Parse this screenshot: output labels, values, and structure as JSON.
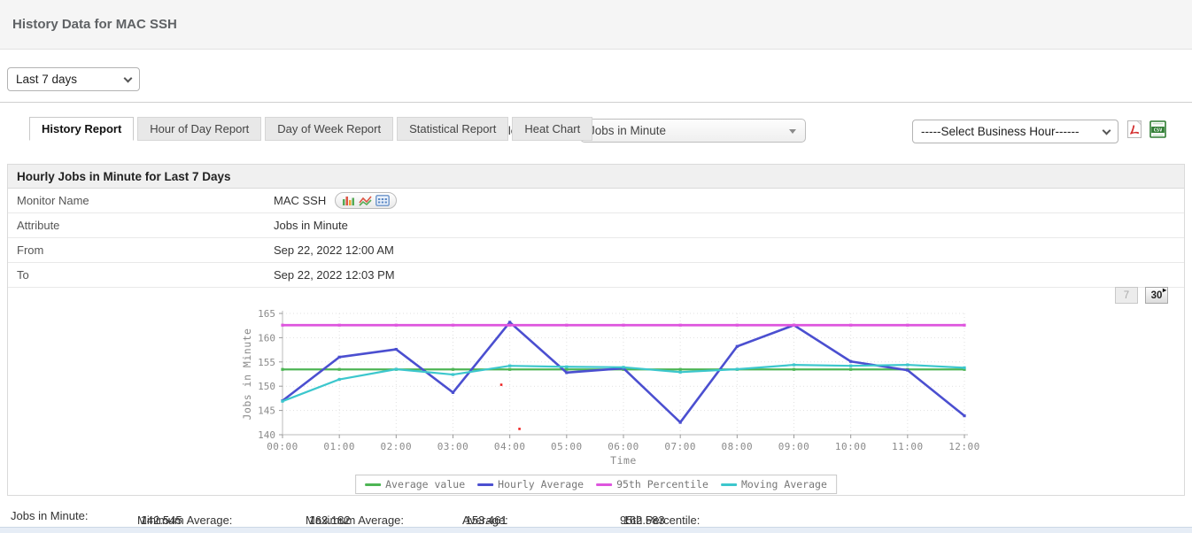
{
  "header": {
    "title": "History Data for MAC SSH"
  },
  "toolbar": {
    "period_select": {
      "value": "Last 7 days"
    },
    "attribute_label": "Select Attribute:",
    "attribute_select": {
      "value": "Jobs in Minute"
    },
    "business_hour_select": {
      "value": "-----Select Business Hour------"
    },
    "export": {
      "pdf": "PDF",
      "csv": "CSV"
    }
  },
  "tabs": [
    {
      "label": "History Report",
      "active": true
    },
    {
      "label": "Hour of Day Report",
      "active": false
    },
    {
      "label": "Day of Week Report",
      "active": false
    },
    {
      "label": "Statistical Report",
      "active": false
    },
    {
      "label": "Heat Chart",
      "active": false
    }
  ],
  "report": {
    "title": "Hourly Jobs in Minute for Last 7 Days",
    "rows": [
      {
        "label": "Monitor Name",
        "value": "MAC SSH"
      },
      {
        "label": "Attribute",
        "value": "Jobs in Minute"
      },
      {
        "label": "From",
        "value": "Sep 22, 2022 12:00 AM"
      },
      {
        "label": "To",
        "value": "Sep 22, 2022 12:03 PM"
      }
    ],
    "range_buttons": [
      {
        "label": "7",
        "disabled": true
      },
      {
        "label": "30",
        "disabled": false
      }
    ]
  },
  "chart_data": {
    "type": "line",
    "x": [
      "00:00",
      "01:00",
      "02:00",
      "03:00",
      "04:00",
      "05:00",
      "06:00",
      "07:00",
      "08:00",
      "09:00",
      "10:00",
      "11:00",
      "12:00"
    ],
    "series": [
      {
        "name": "Average value",
        "color": "#4db554",
        "values": [
          153.461,
          153.461,
          153.461,
          153.461,
          153.461,
          153.461,
          153.461,
          153.461,
          153.461,
          153.461,
          153.461,
          153.461,
          153.461
        ]
      },
      {
        "name": "Hourly Average",
        "color": "#4b4fd0",
        "values": [
          147.0,
          156.0,
          157.6,
          148.7,
          163.182,
          152.8,
          153.7,
          142.545,
          158.2,
          162.583,
          155.1,
          153.3,
          143.9
        ]
      },
      {
        "name": "95th Percentile",
        "color": "#de55de",
        "values": [
          162.583,
          162.583,
          162.583,
          162.583,
          162.583,
          162.583,
          162.583,
          162.583,
          162.583,
          162.583,
          162.583,
          162.583,
          162.583
        ]
      },
      {
        "name": "Moving Average",
        "color": "#3cc7cd",
        "values": [
          146.9,
          151.4,
          153.5,
          152.4,
          154.2,
          154.0,
          153.9,
          152.9,
          153.5,
          154.4,
          154.2,
          154.4,
          153.8
        ]
      }
    ],
    "outlier_points": {
      "color": "#ee2222",
      "points": [
        {
          "x_hour": 3.85,
          "y": 150.3
        },
        {
          "x_hour": 4.17,
          "y": 141.2
        }
      ]
    },
    "title": "",
    "xlabel": "Time",
    "ylabel": "Jobs in Minute",
    "ylim": [
      140,
      165
    ],
    "yticks": [
      140,
      145,
      150,
      155,
      160,
      165
    ],
    "grid": true,
    "legend_position": "bottom"
  },
  "summary": {
    "metric_label": "Jobs in Minute:",
    "stats": [
      {
        "label": "Minimum Average:",
        "value": "142.545"
      },
      {
        "label": "Maximum Average:",
        "value": "163.182"
      },
      {
        "label": "Average:",
        "value": "153.461"
      },
      {
        "label": "95th Percentile:",
        "value": "162.583"
      }
    ]
  },
  "colors": {
    "header_bg": "#f5f5f5",
    "panel_header_bg": "#f0f0f0",
    "pdf_icon_red": "#d32f2f",
    "csv_icon_green": "#2e7d32",
    "axis_text": "#8a8a8a"
  }
}
